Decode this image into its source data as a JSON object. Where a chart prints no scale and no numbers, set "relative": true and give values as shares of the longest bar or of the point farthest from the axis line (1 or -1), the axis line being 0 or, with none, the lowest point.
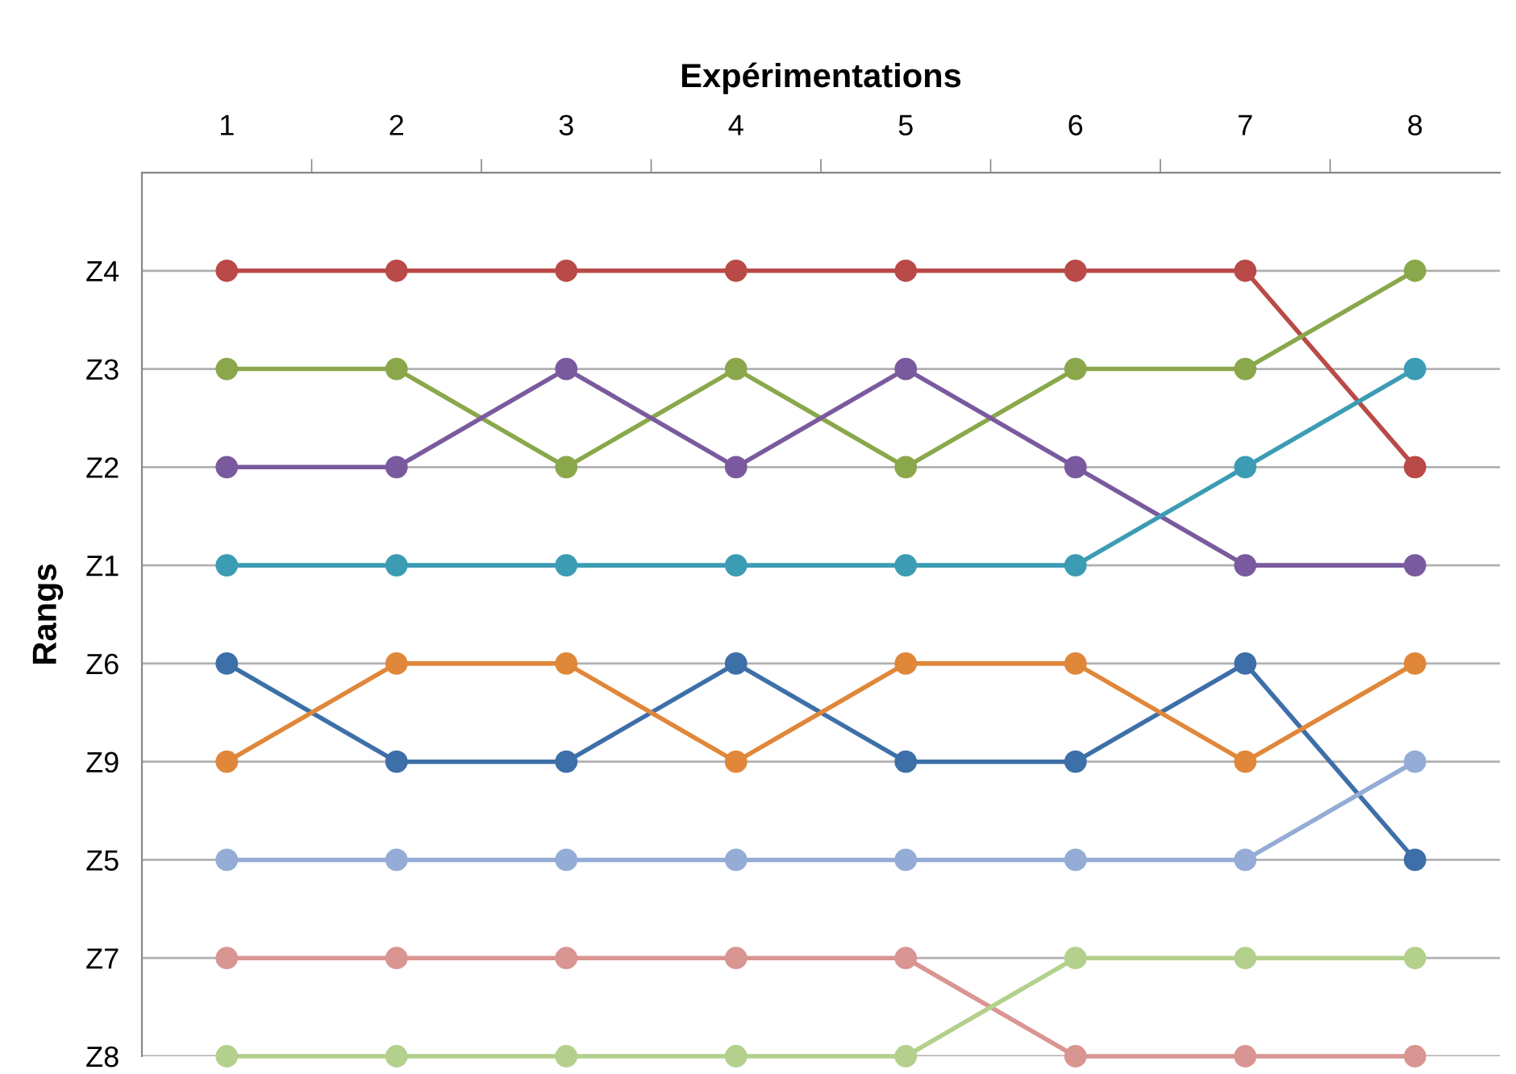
{
  "chart_data": {
    "type": "line",
    "relative": true,
    "xlabel": "Expérimentations",
    "ylabel": "Rangs",
    "categories": [
      "1",
      "2",
      "3",
      "4",
      "5",
      "6",
      "7",
      "8"
    ],
    "y_categories": [
      "Z4",
      "Z3",
      "Z2",
      "Z1",
      "Z6",
      "Z9",
      "Z5",
      "Z7",
      "Z8"
    ],
    "grid": "y",
    "marker": "circle",
    "line_style": "solid",
    "series": [
      {
        "color": "#b94a48",
        "values": [
          1,
          1,
          1,
          1,
          1,
          1,
          1,
          0.75
        ]
      },
      {
        "color": "#8aa84b",
        "values": [
          0.875,
          0.875,
          0.75,
          0.875,
          0.75,
          0.875,
          0.875,
          1
        ]
      },
      {
        "color": "#7a5a9e",
        "values": [
          0.75,
          0.75,
          0.875,
          0.75,
          0.875,
          0.75,
          0.625,
          0.625
        ]
      },
      {
        "color": "#3c9cb4",
        "values": [
          0.625,
          0.625,
          0.625,
          0.625,
          0.625,
          0.625,
          0.75,
          0.875
        ]
      },
      {
        "color": "#3d6fa8",
        "values": [
          0.5,
          0.375,
          0.375,
          0.5,
          0.375,
          0.375,
          0.5,
          0.25
        ]
      },
      {
        "color": "#e0873a",
        "values": [
          0.375,
          0.5,
          0.5,
          0.375,
          0.5,
          0.5,
          0.375,
          0.5
        ]
      },
      {
        "color": "#94acd6",
        "values": [
          0.25,
          0.25,
          0.25,
          0.25,
          0.25,
          0.25,
          0.25,
          0.375
        ]
      },
      {
        "color": "#d99592",
        "values": [
          0.125,
          0.125,
          0.125,
          0.125,
          0.125,
          0,
          0,
          0
        ]
      },
      {
        "color": "#b3d08c",
        "values": [
          0,
          0,
          0,
          0,
          0,
          0.125,
          0.125,
          0.125
        ]
      }
    ]
  }
}
